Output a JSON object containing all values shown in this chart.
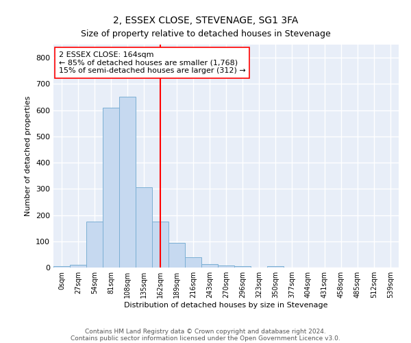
{
  "title": "2, ESSEX CLOSE, STEVENAGE, SG1 3FA",
  "subtitle": "Size of property relative to detached houses in Stevenage",
  "xlabel": "Distribution of detached houses by size in Stevenage",
  "ylabel": "Number of detached properties",
  "bar_color": "#c6d9f0",
  "bar_edge_color": "#7bafd4",
  "background_color": "#e8eef8",
  "grid_color": "#ffffff",
  "vline_color": "red",
  "categories": [
    "0sqm",
    "27sqm",
    "54sqm",
    "81sqm",
    "108sqm",
    "135sqm",
    "162sqm",
    "189sqm",
    "216sqm",
    "243sqm",
    "270sqm",
    "296sqm",
    "323sqm",
    "350sqm",
    "377sqm",
    "404sqm",
    "431sqm",
    "458sqm",
    "485sqm",
    "512sqm",
    "539sqm"
  ],
  "values": [
    5,
    10,
    175,
    610,
    650,
    305,
    175,
    95,
    40,
    12,
    7,
    5,
    0,
    5,
    0,
    0,
    0,
    0,
    0,
    0,
    0
  ],
  "ylim": [
    0,
    850
  ],
  "yticks": [
    0,
    100,
    200,
    300,
    400,
    500,
    600,
    700,
    800
  ],
  "vline_idx": 6,
  "annotation_line1": "2 ESSEX CLOSE: 164sqm",
  "annotation_line2": "← 85% of detached houses are smaller (1,768)",
  "annotation_line3": "15% of semi-detached houses are larger (312) →",
  "annotation_box_color": "white",
  "annotation_box_edge_color": "red",
  "footer_line1": "Contains HM Land Registry data © Crown copyright and database right 2024.",
  "footer_line2": "Contains public sector information licensed under the Open Government Licence v3.0.",
  "title_fontsize": 10,
  "subtitle_fontsize": 9,
  "annotation_fontsize": 8,
  "footer_fontsize": 6.5,
  "ylabel_fontsize": 8,
  "xlabel_fontsize": 8,
  "ytick_fontsize": 8,
  "xtick_fontsize": 7
}
